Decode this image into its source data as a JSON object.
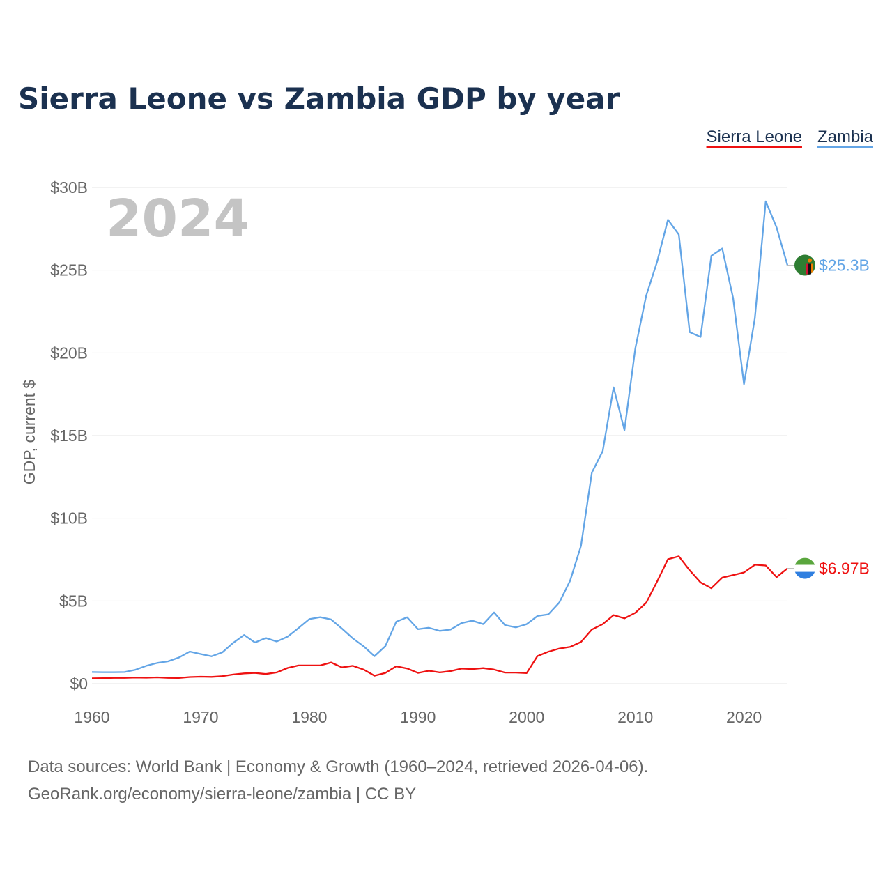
{
  "chart_data": {
    "type": "line",
    "title": "Sierra Leone vs Zambia GDP by year",
    "ylabel": "GDP, current $",
    "xlabel": "",
    "xlim": [
      1960,
      2024
    ],
    "ylim": [
      0,
      30
    ],
    "y_unit": "billion US$",
    "year_label": "2024",
    "x_ticks": [
      {
        "value": 1960,
        "label": "1960"
      },
      {
        "value": 1970,
        "label": "1970"
      },
      {
        "value": 1980,
        "label": "1980"
      },
      {
        "value": 1990,
        "label": "1990"
      },
      {
        "value": 2000,
        "label": "2000"
      },
      {
        "value": 2010,
        "label": "2010"
      },
      {
        "value": 2020,
        "label": "2020"
      }
    ],
    "y_ticks": [
      {
        "value": 0,
        "label": "$0"
      },
      {
        "value": 5,
        "label": "$5B"
      },
      {
        "value": 10,
        "label": "$10B"
      },
      {
        "value": 15,
        "label": "$15B"
      },
      {
        "value": 20,
        "label": "$20B"
      },
      {
        "value": 25,
        "label": "$25B"
      },
      {
        "value": 30,
        "label": "$30B"
      }
    ],
    "legend": [
      "Sierra Leone",
      "Zambia"
    ],
    "legend_position": "top-right",
    "x": [
      1960,
      1961,
      1962,
      1963,
      1964,
      1965,
      1966,
      1967,
      1968,
      1969,
      1970,
      1971,
      1972,
      1973,
      1974,
      1975,
      1976,
      1977,
      1978,
      1979,
      1980,
      1981,
      1982,
      1983,
      1984,
      1985,
      1986,
      1987,
      1988,
      1989,
      1990,
      1991,
      1992,
      1993,
      1994,
      1995,
      1996,
      1997,
      1998,
      1999,
      2000,
      2001,
      2002,
      2003,
      2004,
      2005,
      2006,
      2007,
      2008,
      2009,
      2010,
      2011,
      2012,
      2013,
      2014,
      2015,
      2016,
      2017,
      2018,
      2019,
      2020,
      2021,
      2022,
      2023,
      2024
    ],
    "series": [
      {
        "name": "Sierra Leone",
        "color": "#ee1111",
        "end_label": "$6.97B",
        "values": [
          0.32,
          0.33,
          0.35,
          0.35,
          0.37,
          0.36,
          0.38,
          0.35,
          0.34,
          0.4,
          0.42,
          0.41,
          0.45,
          0.55,
          0.62,
          0.65,
          0.58,
          0.68,
          0.95,
          1.1,
          1.1,
          1.1,
          1.28,
          0.98,
          1.08,
          0.85,
          0.48,
          0.65,
          1.05,
          0.92,
          0.65,
          0.78,
          0.68,
          0.76,
          0.91,
          0.88,
          0.94,
          0.85,
          0.67,
          0.67,
          0.64,
          1.67,
          1.93,
          2.12,
          2.22,
          2.52,
          3.27,
          3.6,
          4.14,
          3.95,
          4.28,
          4.89,
          6.17,
          7.52,
          7.7,
          6.85,
          6.12,
          5.77,
          6.41,
          6.56,
          6.72,
          7.19,
          7.14,
          6.44,
          6.97
        ]
      },
      {
        "name": "Zambia",
        "color": "#63a5e6",
        "end_label": "$25.3B",
        "values": [
          0.7,
          0.69,
          0.69,
          0.7,
          0.84,
          1.08,
          1.25,
          1.35,
          1.58,
          1.94,
          1.79,
          1.65,
          1.89,
          2.47,
          2.94,
          2.49,
          2.76,
          2.55,
          2.84,
          3.36,
          3.9,
          4.02,
          3.88,
          3.33,
          2.74,
          2.26,
          1.66,
          2.27,
          3.74,
          4.01,
          3.29,
          3.38,
          3.19,
          3.27,
          3.66,
          3.81,
          3.6,
          4.3,
          3.54,
          3.4,
          3.6,
          4.09,
          4.19,
          4.9,
          6.22,
          8.33,
          12.76,
          14.06,
          17.91,
          15.33,
          20.27,
          23.46,
          25.5,
          28.05,
          27.15,
          21.25,
          20.96,
          25.87,
          26.31,
          23.31,
          18.11,
          22.1,
          29.16,
          27.58,
          25.3
        ]
      }
    ]
  },
  "source": {
    "line1": "Data sources: World Bank | Economy & Growth (1960–2024, retrieved 2026-04-06).",
    "line2": "GeoRank.org/economy/sierra-leone/zambia | CC BY"
  },
  "colors": {
    "title": "#1b3150",
    "tick": "#666666",
    "grid": "#e6e6e6",
    "watermark": "#c4c4c4",
    "zambia_flag_green": "#2e7d32",
    "sierra_leone_flag": [
      "#5aa63d",
      "#ffffff",
      "#2f7fe0"
    ]
  }
}
